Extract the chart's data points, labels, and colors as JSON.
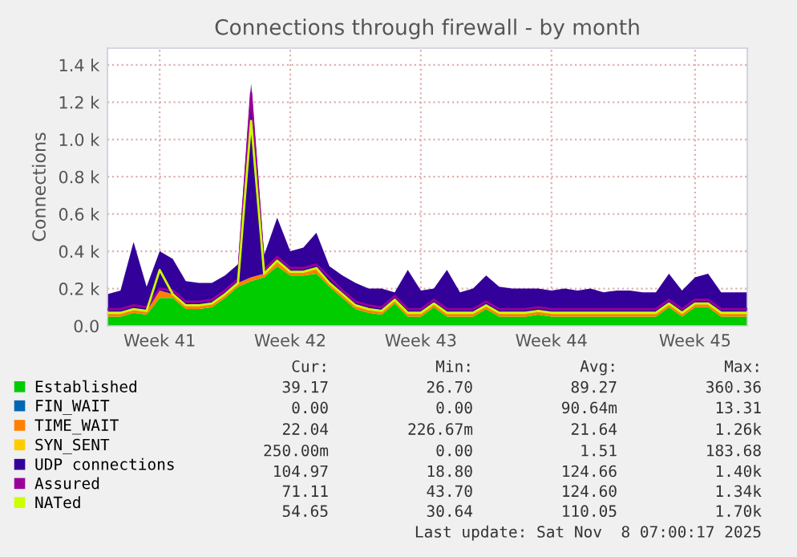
{
  "chart_data": {
    "type": "area",
    "stacked": true,
    "title": "Connections through firewall - by month",
    "ylabel": "Connections",
    "categories": [
      null,
      null,
      null,
      null,
      "Week 41",
      null,
      null,
      null,
      null,
      null,
      null,
      null,
      null,
      null,
      "Week 42",
      null,
      null,
      null,
      null,
      null,
      null,
      null,
      null,
      null,
      "Week 43",
      null,
      null,
      null,
      null,
      null,
      null,
      null,
      null,
      null,
      "Week 44",
      null,
      null,
      null,
      null,
      null,
      null,
      null,
      null,
      null,
      null,
      "Week 45",
      null,
      null,
      null,
      null
    ],
    "ylim": [
      0,
      1490
    ],
    "yticks": [
      {
        "value": 0,
        "label": "0.0"
      },
      {
        "value": 200,
        "label": "0.2 k"
      },
      {
        "value": 400,
        "label": "0.4 k"
      },
      {
        "value": 600,
        "label": "0.6 k"
      },
      {
        "value": 800,
        "label": "0.8 k"
      },
      {
        "value": 1000,
        "label": "1.0 k"
      },
      {
        "value": 1200,
        "label": "1.2 k"
      },
      {
        "value": 1400,
        "label": "1.4 k"
      }
    ],
    "grid": true,
    "legend": "bottom",
    "series": [
      {
        "name": "Established",
        "color": "#00cc00",
        "values": [
          50,
          50,
          70,
          60,
          150,
          150,
          90,
          90,
          100,
          150,
          210,
          240,
          260,
          320,
          270,
          270,
          280,
          210,
          150,
          90,
          70,
          60,
          120,
          50,
          50,
          100,
          50,
          50,
          50,
          90,
          50,
          50,
          50,
          60,
          50,
          50,
          50,
          50,
          50,
          50,
          50,
          50,
          50,
          100,
          50,
          100,
          100,
          50,
          50,
          50
        ]
      },
      {
        "name": "FIN_WAIT",
        "color": "#0066b3",
        "values": [
          null,
          null,
          null,
          null,
          null,
          null,
          null,
          null,
          null,
          null,
          null,
          null,
          null,
          null,
          null,
          null,
          null,
          null,
          null,
          null,
          null,
          null,
          null,
          null,
          null,
          null,
          null,
          null,
          null,
          null,
          null,
          null,
          null,
          null,
          null,
          null,
          null,
          null,
          null,
          null,
          null,
          null,
          null,
          null,
          null,
          null,
          null,
          null,
          null,
          null
        ]
      },
      {
        "name": "TIME_WAIT",
        "color": "#ff8000",
        "values": [
          20,
          20,
          20,
          20,
          40,
          20,
          20,
          20,
          20,
          20,
          20,
          20,
          20,
          30,
          20,
          20,
          30,
          20,
          20,
          20,
          20,
          20,
          20,
          20,
          20,
          20,
          20,
          20,
          20,
          20,
          20,
          20,
          20,
          20,
          20,
          20,
          20,
          20,
          20,
          20,
          20,
          20,
          20,
          20,
          20,
          20,
          20,
          20,
          20,
          20
        ]
      },
      {
        "name": "SYN_SENT",
        "color": "#ffcc00",
        "values": [
          null,
          null,
          null,
          null,
          null,
          null,
          null,
          null,
          null,
          null,
          null,
          null,
          null,
          null,
          null,
          null,
          null,
          null,
          null,
          null,
          null,
          null,
          null,
          null,
          null,
          null,
          null,
          null,
          null,
          null,
          null,
          null,
          null,
          null,
          null,
          null,
          null,
          null,
          null,
          null,
          null,
          null,
          null,
          null,
          null,
          null,
          null,
          null,
          null,
          null
        ]
      },
      {
        "name": "UDP connections",
        "color": "#330099",
        "values": [
          100,
          120,
          360,
          130,
          210,
          190,
          130,
          120,
          110,
          100,
          100,
          1040,
          100,
          230,
          110,
          130,
          190,
          90,
          100,
          120,
          110,
          120,
          40,
          230,
          120,
          80,
          230,
          110,
          130,
          160,
          140,
          130,
          130,
          120,
          120,
          130,
          120,
          130,
          110,
          120,
          120,
          110,
          110,
          160,
          120,
          140,
          160,
          110,
          110,
          110
        ]
      },
      {
        "name": "Assured",
        "type": "line",
        "color": "#990099",
        "values": [
          90,
          90,
          110,
          100,
          200,
          190,
          130,
          130,
          140,
          190,
          250,
          1250,
          300,
          370,
          310,
          310,
          330,
          260,
          190,
          130,
          110,
          100,
          160,
          90,
          90,
          140,
          90,
          90,
          90,
          130,
          90,
          90,
          90,
          100,
          90,
          90,
          90,
          90,
          90,
          90,
          90,
          90,
          90,
          140,
          90,
          140,
          140,
          90,
          90,
          90
        ]
      },
      {
        "name": "NATed",
        "type": "line",
        "color": "#ccff00",
        "values": [
          70,
          70,
          90,
          80,
          300,
          170,
          110,
          110,
          120,
          170,
          230,
          1100,
          280,
          350,
          290,
          290,
          310,
          230,
          170,
          110,
          90,
          80,
          140,
          70,
          70,
          120,
          70,
          70,
          70,
          110,
          70,
          70,
          70,
          80,
          70,
          70,
          70,
          70,
          70,
          70,
          70,
          70,
          70,
          120,
          70,
          120,
          120,
          70,
          70,
          70
        ]
      }
    ],
    "annotations": [
      "Cur:",
      "Min:",
      "Avg:",
      "Max:",
      "39.17",
      "26.70",
      "89.27",
      "360.36",
      "0.00",
      "0.00",
      "90.64m",
      "13.31",
      "22.04",
      "226.67m",
      "21.64",
      "1.26k",
      "250.00m",
      "0.00",
      "1.51",
      "183.68",
      "104.97",
      "18.80",
      "124.66",
      "1.40k",
      "71.11",
      "43.70",
      "124.60",
      "1.34k",
      "54.65",
      "30.64",
      "110.05",
      "1.70k",
      "Last update: Sat Nov  8 07:00:17 2025"
    ]
  }
}
